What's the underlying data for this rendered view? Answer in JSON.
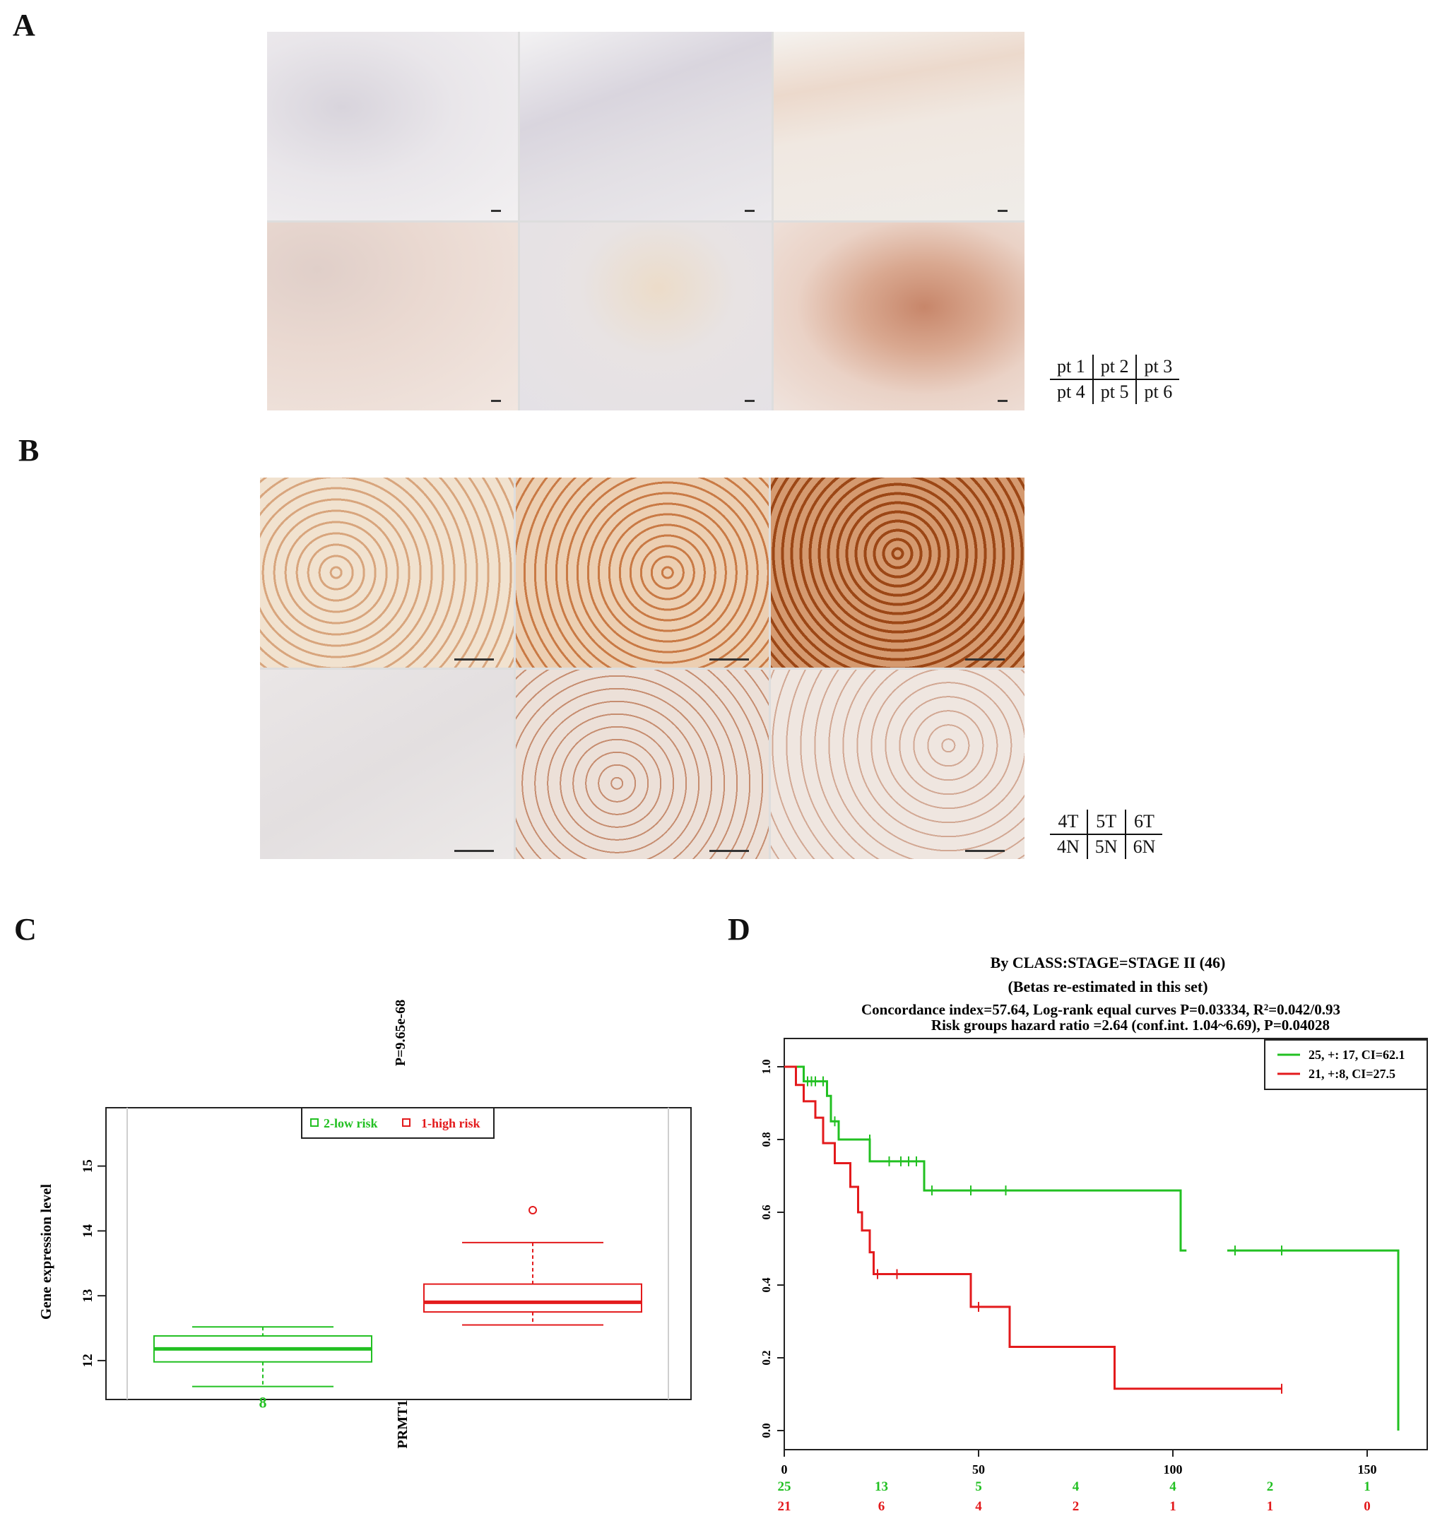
{
  "panels": {
    "a": "A",
    "b": "B",
    "c": "C",
    "d": "D"
  },
  "panel_a": {
    "key": {
      "row1": [
        "pt 1",
        "pt 2",
        "pt 3"
      ],
      "row2": [
        "pt 4",
        "pt 5",
        "pt 6"
      ]
    }
  },
  "panel_b": {
    "key": {
      "row1": [
        "4T",
        "5T",
        "6T"
      ],
      "row2": [
        "4N",
        "5N",
        "6N"
      ]
    }
  },
  "colors": {
    "low_risk": "#22c022",
    "high_risk": "#e31a1c"
  },
  "chart_data": [
    {
      "id": "C",
      "type": "box",
      "pvalue": "P=9.65e-68",
      "ylabel": "Gene expression level",
      "xlabel": "PRMT1",
      "yticks": [
        12,
        13,
        14,
        15
      ],
      "ylim": [
        11.4,
        15.9
      ],
      "legend": [
        "2-low risk",
        "1-high risk"
      ],
      "groups": [
        {
          "name": "2-low risk",
          "min": 11.6,
          "q1": 11.98,
          "median": 12.18,
          "q3": 12.38,
          "max": 12.52,
          "outliers": [],
          "annotation": "8"
        },
        {
          "name": "1-high risk",
          "min": 12.55,
          "q1": 12.75,
          "median": 12.9,
          "q3": 13.18,
          "max": 13.82,
          "outliers": [
            14.32
          ],
          "annotation": ""
        }
      ]
    },
    {
      "id": "D",
      "type": "line",
      "title": "By CLASS:STAGE=STAGE II (46)",
      "subtitle": "(Betas re-estimated in this set)",
      "line3": "Concordance index=57.64, Log-rank equal curves P=0.03334, R²=0.042/0.93",
      "line4": "Risk groups hazard ratio =2.64 (conf.int. 1.04~6.69), P=0.04028",
      "xticks": [
        0,
        50,
        100,
        150
      ],
      "yticks": [
        "0.0",
        "0.2",
        "0.4",
        "0.6",
        "0.8",
        "1.0"
      ],
      "xlim": [
        0,
        160
      ],
      "ylim": [
        0,
        1.02
      ],
      "risk_x": [
        0,
        25,
        50,
        75,
        100,
        125,
        150
      ],
      "series": [
        {
          "name": "25, +: 17, CI=62.1",
          "color": "#22c022",
          "steps": [
            [
              0,
              1.0
            ],
            [
              5,
              0.96
            ],
            [
              11,
              0.92
            ],
            [
              12,
              0.85
            ],
            [
              14,
              0.8
            ],
            [
              22,
              0.74
            ],
            [
              36,
              0.66
            ],
            [
              102,
              0.495
            ],
            [
              158,
              0.0
            ]
          ],
          "end_x": 158,
          "censors": [
            [
              6,
              0.96
            ],
            [
              7,
              0.96
            ],
            [
              8,
              0.96
            ],
            [
              10,
              0.96
            ],
            [
              13,
              0.85
            ],
            [
              22,
              0.8
            ],
            [
              27,
              0.74
            ],
            [
              30,
              0.74
            ],
            [
              32,
              0.74
            ],
            [
              34,
              0.74
            ],
            [
              38,
              0.66
            ],
            [
              48,
              0.66
            ],
            [
              57,
              0.66
            ],
            [
              116,
              0.495
            ],
            [
              128,
              0.495
            ]
          ],
          "gaps": [
            [
              103.5,
              114
            ]
          ],
          "at_risk": [
            "25",
            "13",
            "5",
            "4",
            "4",
            "2",
            "1"
          ]
        },
        {
          "name": "21, +:8, CI=27.5",
          "color": "#e31a1c",
          "steps": [
            [
              0,
              1.0
            ],
            [
              3,
              0.95
            ],
            [
              5,
              0.905
            ],
            [
              8,
              0.86
            ],
            [
              10,
              0.79
            ],
            [
              13,
              0.735
            ],
            [
              17,
              0.67
            ],
            [
              19,
              0.6
            ],
            [
              20,
              0.55
            ],
            [
              22,
              0.49
            ],
            [
              23,
              0.43
            ],
            [
              48,
              0.34
            ],
            [
              58,
              0.23
            ],
            [
              85,
              0.115
            ]
          ],
          "end_x": 128,
          "censors": [
            [
              24,
              0.43
            ],
            [
              29,
              0.43
            ],
            [
              50,
              0.34
            ],
            [
              128,
              0.115
            ]
          ],
          "gaps": [],
          "at_risk": [
            "21",
            "6",
            "4",
            "2",
            "1",
            "1",
            "0"
          ]
        }
      ]
    }
  ]
}
